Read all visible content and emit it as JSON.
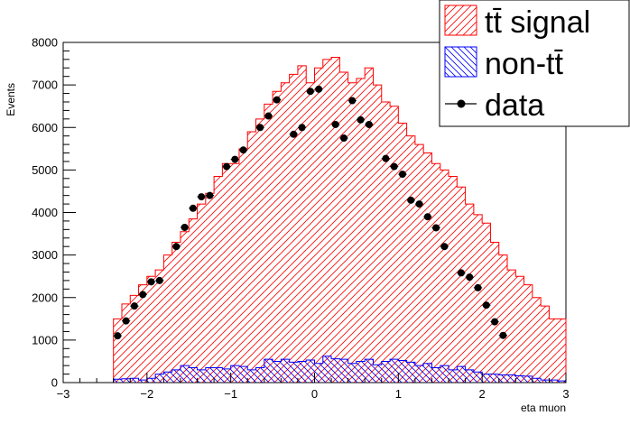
{
  "chart_data": {
    "type": "bar",
    "xlabel": "eta muon",
    "ylabel": "Events",
    "xlim": [
      -3,
      3
    ],
    "ylim": [
      0,
      8000
    ],
    "x_ticks": [
      -3,
      -2,
      -1,
      0,
      1,
      2,
      3
    ],
    "y_ticks": [
      0,
      1000,
      2000,
      3000,
      4000,
      5000,
      6000,
      7000,
      8000
    ],
    "grid": false,
    "legend_position": "top-right",
    "bin_edges_start": -2.4,
    "bin_width": 0.1,
    "series": [
      {
        "name": "tt̄ signal",
        "style": "hatched-histogram",
        "color": "#ff0000",
        "values": [
          1500,
          1850,
          2050,
          2300,
          2500,
          2650,
          3000,
          3300,
          3550,
          3850,
          4200,
          4450,
          4850,
          5150,
          5150,
          5500,
          5900,
          6200,
          6550,
          6850,
          7050,
          7250,
          7450,
          7050,
          7400,
          7600,
          7650,
          7300,
          7050,
          7150,
          7400,
          7000,
          6600,
          6500,
          6100,
          5800,
          5600,
          5400,
          5150,
          5000,
          4850,
          4600,
          4200,
          3950,
          3750,
          3300,
          3000,
          2650,
          2500,
          2300,
          2000,
          1800,
          1500,
          1500
        ]
      },
      {
        "name": "non-tt̄",
        "style": "hatched-histogram",
        "color": "#0000ff",
        "values": [
          80,
          90,
          100,
          60,
          100,
          200,
          250,
          300,
          400,
          350,
          300,
          350,
          350,
          320,
          400,
          380,
          300,
          350,
          550,
          500,
          550,
          480,
          500,
          530,
          450,
          620,
          560,
          550,
          450,
          500,
          550,
          420,
          500,
          550,
          520,
          480,
          400,
          450,
          350,
          400,
          300,
          380,
          300,
          250,
          200,
          200,
          180,
          180,
          160,
          150,
          100,
          60,
          60,
          40
        ]
      },
      {
        "name": "data",
        "style": "markers",
        "color": "#000000",
        "points": [
          [
            -2.35,
            1100
          ],
          [
            -2.25,
            1450
          ],
          [
            -2.15,
            1800
          ],
          [
            -2.05,
            2070
          ],
          [
            -1.95,
            2370
          ],
          [
            -1.85,
            2400
          ],
          [
            -1.65,
            3200
          ],
          [
            -1.55,
            3650
          ],
          [
            -1.45,
            4100
          ],
          [
            -1.35,
            4370
          ],
          [
            -1.25,
            4400
          ],
          [
            -1.05,
            5080
          ],
          [
            -0.95,
            5250
          ],
          [
            -0.85,
            5470
          ],
          [
            -0.65,
            6000
          ],
          [
            -0.55,
            6270
          ],
          [
            -0.45,
            6650
          ],
          [
            -0.25,
            5840
          ],
          [
            -0.15,
            6000
          ],
          [
            -0.05,
            6850
          ],
          [
            0.05,
            6900
          ],
          [
            0.25,
            6070
          ],
          [
            0.35,
            5750
          ],
          [
            0.45,
            6630
          ],
          [
            0.55,
            6180
          ],
          [
            0.65,
            6070
          ],
          [
            0.85,
            5270
          ],
          [
            0.95,
            5080
          ],
          [
            1.05,
            4900
          ],
          [
            1.15,
            4290
          ],
          [
            1.25,
            4200
          ],
          [
            1.35,
            3900
          ],
          [
            1.45,
            3640
          ],
          [
            1.55,
            3200
          ],
          [
            1.75,
            2580
          ],
          [
            1.85,
            2480
          ],
          [
            1.95,
            2230
          ],
          [
            2.05,
            1820
          ],
          [
            2.15,
            1430
          ],
          [
            2.25,
            1110
          ]
        ]
      }
    ]
  }
}
